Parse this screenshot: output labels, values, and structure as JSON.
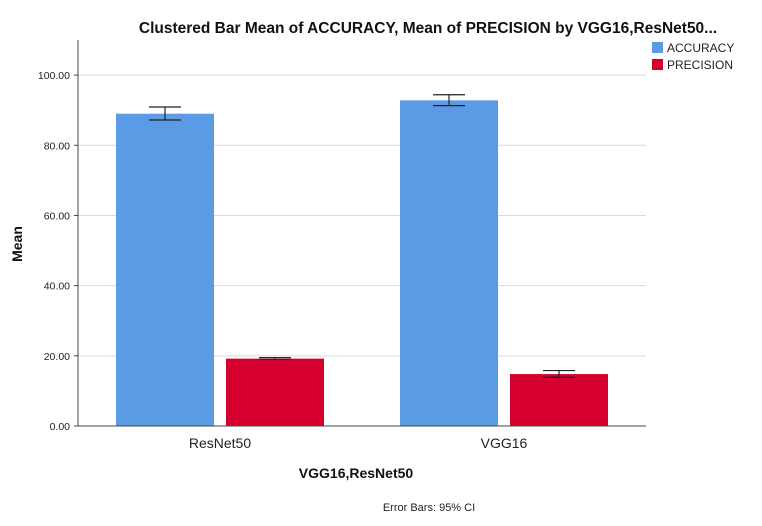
{
  "chart_data": {
    "type": "bar",
    "title": "Clustered Bar Mean of ACCURACY, Mean of PRECISION by VGG16,ResNet50...",
    "xlabel": "VGG16,ResNet50",
    "ylabel": "Mean",
    "categories": [
      "ResNet50",
      "VGG16"
    ],
    "series": [
      {
        "name": "ACCURACY",
        "color": "#5b9be6",
        "values": [
          89.0,
          92.8
        ],
        "ci_lower": [
          87.2,
          91.3
        ],
        "ci_upper": [
          90.9,
          94.4
        ]
      },
      {
        "name": "PRECISION",
        "color": "#d6002f",
        "values": [
          19.2,
          14.8
        ],
        "ci_lower": [
          19.0,
          13.9
        ],
        "ci_upper": [
          19.5,
          15.8
        ]
      }
    ],
    "ylim": [
      0,
      110
    ],
    "yticks": [
      0,
      20,
      40,
      60,
      80,
      100
    ],
    "ytick_labels": [
      "0.00",
      "20.00",
      "40.00",
      "60.00",
      "80.00",
      "100.00"
    ],
    "grid": true,
    "legend": "top-right",
    "footnote": "Error Bars: 95% CI"
  }
}
